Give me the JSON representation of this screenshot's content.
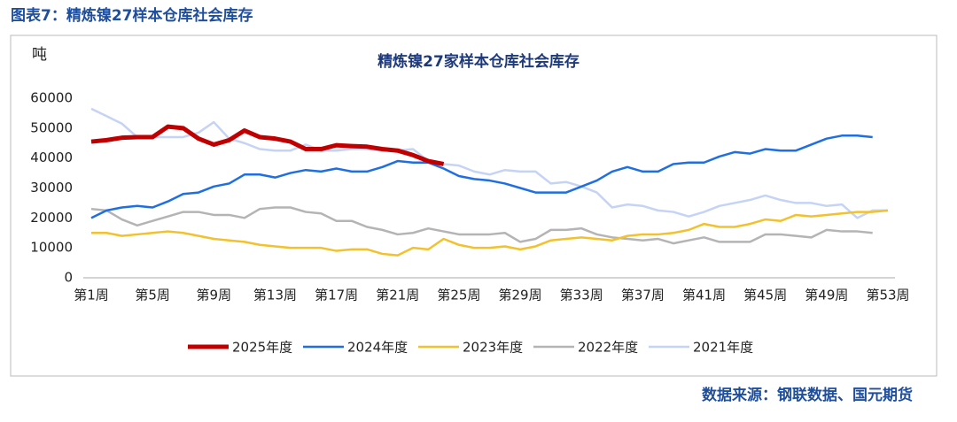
{
  "header": {
    "title": "图表7：精炼镍27样本仓库社会库存"
  },
  "chart_data": {
    "type": "line",
    "title": "精炼镍27家样本仓库社会库存",
    "y_label": "吨",
    "categories": [
      "第1周",
      null,
      null,
      null,
      "第5周",
      null,
      null,
      null,
      "第9周",
      null,
      null,
      null,
      "第13周",
      null,
      null,
      null,
      "第17周",
      null,
      null,
      null,
      "第21周",
      null,
      null,
      null,
      "第25周",
      null,
      null,
      null,
      "第29周",
      null,
      null,
      null,
      "第33周",
      null,
      null,
      null,
      "第37周",
      null,
      null,
      null,
      "第41周",
      null,
      null,
      null,
      "第45周",
      null,
      null,
      null,
      "第49周",
      null,
      null,
      null,
      "第53周"
    ],
    "ylim": [
      0,
      60000
    ],
    "yticks": [
      0,
      10000,
      20000,
      30000,
      40000,
      50000,
      60000
    ],
    "grid": false,
    "legend": "bottom",
    "series": [
      {
        "name": "2025年度",
        "color": "#c00000",
        "values": [
          45500,
          46000,
          46800,
          47000,
          47000,
          50500,
          50000,
          46500,
          44500,
          46000,
          49200,
          47000,
          46500,
          45500,
          43000,
          43000,
          44300,
          44000,
          43800,
          43000,
          42500,
          41000,
          39000,
          38000,
          null,
          null,
          null,
          null,
          null,
          null,
          null,
          null,
          null,
          null,
          null,
          null,
          null,
          null,
          null,
          null,
          null,
          null,
          null,
          null,
          null,
          null,
          null,
          null,
          null,
          null,
          null,
          null,
          null
        ]
      },
      {
        "name": "2024年度",
        "color": "#1f6fe0",
        "values": [
          20000,
          22500,
          23500,
          24000,
          23500,
          25500,
          28000,
          28500,
          30500,
          31500,
          34500,
          34500,
          33500,
          35000,
          36000,
          35500,
          36500,
          35500,
          35500,
          37000,
          39000,
          38500,
          38500,
          36500,
          34000,
          33000,
          32500,
          31500,
          30000,
          28500,
          28500,
          28500,
          30500,
          32500,
          35500,
          37000,
          35500,
          35500,
          38000,
          38500,
          38500,
          40500,
          42000,
          41500,
          43000,
          42500,
          42500,
          44500,
          46500,
          47500,
          47500,
          47000,
          null
        ]
      },
      {
        "name": "2023年度",
        "color": "#f2c12e",
        "values": [
          15000,
          15000,
          14000,
          14500,
          15000,
          15500,
          15000,
          14000,
          13000,
          12500,
          12000,
          11000,
          10500,
          10000,
          10000,
          10000,
          9000,
          9500,
          9500,
          8000,
          7500,
          10000,
          9500,
          13000,
          11000,
          10000,
          10000,
          10500,
          9500,
          10500,
          12500,
          13000,
          13500,
          13000,
          12500,
          14000,
          14500,
          14500,
          15000,
          16000,
          18000,
          17000,
          17000,
          18000,
          19500,
          19000,
          21000,
          20500,
          21000,
          21500,
          22000,
          22000,
          22500
        ]
      },
      {
        "name": "2022年度",
        "color": "#b4b4b4",
        "values": [
          23000,
          22500,
          19500,
          17500,
          19000,
          20500,
          22000,
          22000,
          21000,
          21000,
          20000,
          23000,
          23500,
          23500,
          22000,
          21500,
          19000,
          19000,
          17000,
          16000,
          14500,
          15000,
          16500,
          15500,
          14500,
          14500,
          14500,
          15000,
          12000,
          13000,
          16000,
          16000,
          16500,
          14500,
          13500,
          13000,
          12500,
          13000,
          11500,
          12500,
          13500,
          12000,
          12000,
          12000,
          14500,
          14500,
          14000,
          13500,
          16000,
          15500,
          15500,
          15000,
          null
        ]
      },
      {
        "name": "2021年度",
        "color": "#c5d3f5",
        "values": [
          56500,
          54000,
          51500,
          47000,
          47000,
          47000,
          47000,
          48500,
          52000,
          46500,
          45000,
          43000,
          42500,
          42500,
          44500,
          42500,
          42500,
          43000,
          43000,
          42500,
          42500,
          43000,
          39000,
          38000,
          37500,
          35500,
          34500,
          36000,
          35500,
          35500,
          31500,
          32000,
          30500,
          28500,
          23500,
          24500,
          24000,
          22500,
          22000,
          20500,
          22000,
          24000,
          25000,
          26000,
          27500,
          26000,
          25000,
          25000,
          24000,
          24500,
          20000,
          22500,
          22500
        ]
      }
    ]
  },
  "footer": {
    "source": "数据来源：钢联数据、国元期货"
  }
}
